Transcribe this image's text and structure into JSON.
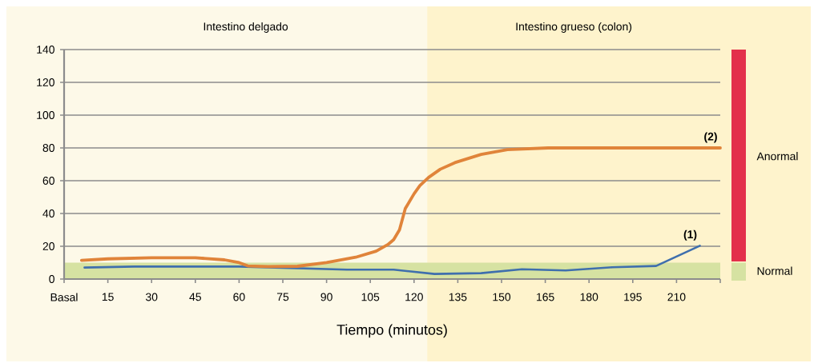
{
  "chart_data": {
    "type": "line",
    "xlabel": "Tiempo (minutos)",
    "xlim": [
      0,
      225
    ],
    "ylim": [
      0,
      140
    ],
    "xticks": [
      {
        "value": 0,
        "label": "Basal"
      },
      15,
      30,
      45,
      60,
      75,
      90,
      105,
      120,
      135,
      150,
      165,
      180,
      195,
      210,
      {
        "value": 225,
        "label": null
      }
    ],
    "yticks": [
      0,
      20,
      40,
      60,
      80,
      100,
      120,
      140
    ],
    "grid": "y",
    "series": [
      {
        "name": "(1)",
        "color": "#3f6fad",
        "x": [
          7,
          24,
          60,
          79,
          97,
          113,
          127,
          143,
          157,
          172,
          188,
          203,
          218
        ],
        "values": [
          7,
          7.6,
          7.6,
          null,
          5.7,
          5.7,
          3.1,
          3.6,
          6,
          5.2,
          7.2,
          8,
          20.3
        ]
      },
      {
        "name": "(2)",
        "color": "#e0843a",
        "x": [
          6,
          15,
          30,
          45,
          55,
          60,
          63,
          70,
          80,
          90,
          100,
          107,
          111,
          113,
          115,
          117,
          120,
          122,
          125,
          129,
          134,
          143,
          152,
          166,
          225
        ],
        "values": [
          11.4,
          12.3,
          13,
          13,
          11.7,
          10,
          8,
          7.6,
          7.8,
          10,
          13.3,
          17,
          21,
          24,
          30,
          43,
          52,
          57,
          62,
          67,
          71,
          76,
          79,
          80,
          80
        ]
      }
    ],
    "bands": [
      {
        "axis": "x",
        "from": 0,
        "to": 124.5,
        "label": "Intestino delgado",
        "color": "#fdf9e8"
      },
      {
        "axis": "x",
        "from": 124.5,
        "to": 225,
        "label": "Intestino grueso (colon)",
        "color": "#fef3cc"
      },
      {
        "axis": "y",
        "from": 0,
        "to": 10,
        "color": "#d6e2a2"
      }
    ],
    "annotations": [
      "Anormal",
      "Normal"
    ]
  }
}
